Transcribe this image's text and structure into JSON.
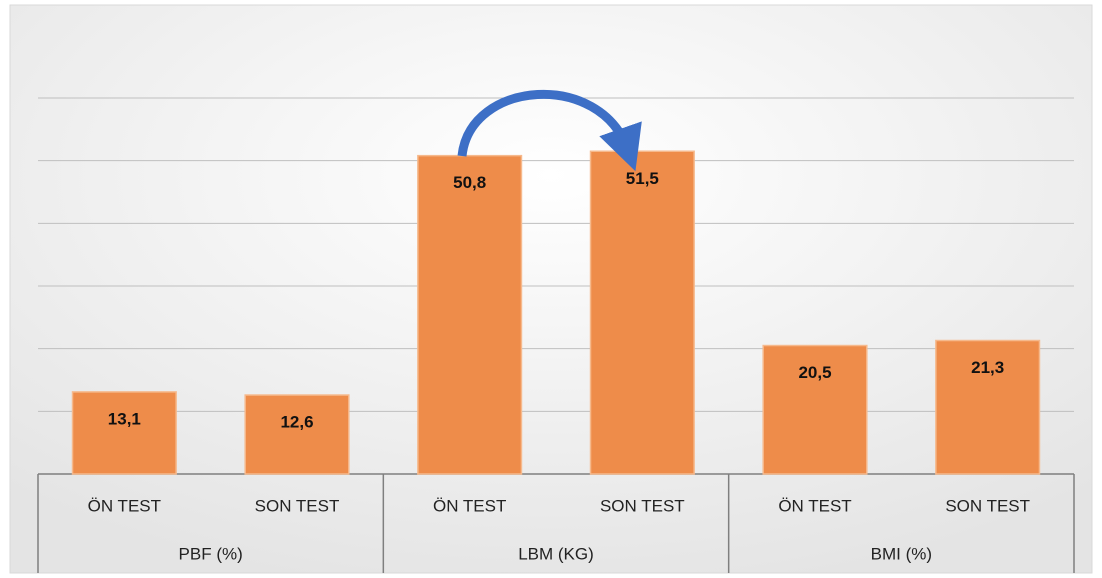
{
  "chart_data": {
    "type": "bar",
    "categories": [
      "ÖN TEST",
      "SON TEST",
      "ÖN TEST",
      "SON TEST",
      "ÖN TEST",
      "SON TEST"
    ],
    "groups": [
      "PBF (%)",
      "LBM (KG)",
      "BMI (%)"
    ],
    "values": [
      13.1,
      12.6,
      50.8,
      51.5,
      20.5,
      21.3
    ],
    "value_labels": [
      "13,1",
      "12,6",
      "50,8",
      "51,5",
      "20,5",
      "21,3"
    ],
    "color": "#ee8c4a",
    "ylim": [
      0,
      60
    ],
    "yticks": [
      0,
      10,
      20,
      30,
      40,
      50,
      60
    ],
    "grid": true
  }
}
